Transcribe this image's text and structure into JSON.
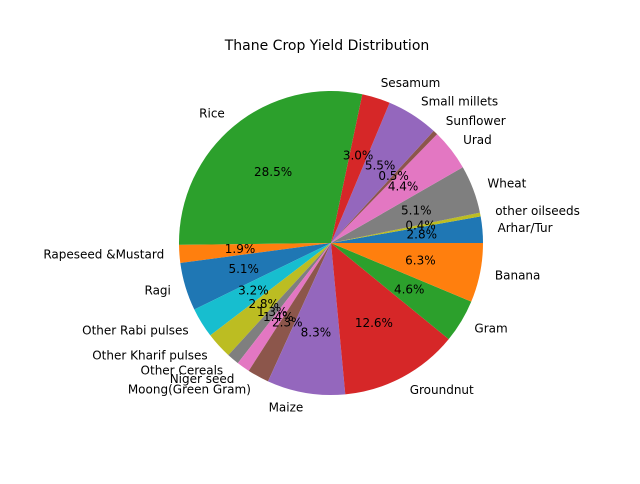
{
  "chart_data": {
    "type": "pie",
    "title": "Thane Crop Yield Distribution",
    "start_angle_deg": 0,
    "direction": "counterclockwise",
    "slices": [
      {
        "label": "Arhar/Tur",
        "value": 2.8,
        "pct": "2.8%",
        "color": "#1f77b4"
      },
      {
        "label": "other oilseeds",
        "value": 0.4,
        "pct": "0.4%",
        "color": "#bcbd22"
      },
      {
        "label": "Wheat",
        "value": 5.1,
        "pct": "5.1%",
        "color": "#7f7f7f"
      },
      {
        "label": "Urad",
        "value": 4.4,
        "pct": "4.4%",
        "color": "#e377c2"
      },
      {
        "label": "Sunflower",
        "value": 0.5,
        "pct": "0.5%",
        "color": "#8c564b"
      },
      {
        "label": "Small millets",
        "value": 5.5,
        "pct": "5.5%",
        "color": "#9467bd"
      },
      {
        "label": "Sesamum",
        "value": 3.0,
        "pct": "3.0%",
        "color": "#d62728"
      },
      {
        "label": "Rice",
        "value": 28.5,
        "pct": "28.5%",
        "color": "#2ca02c"
      },
      {
        "label": "Rapeseed &Mustard",
        "value": 1.9,
        "pct": "1.9%",
        "color": "#ff7f0e"
      },
      {
        "label": "Ragi",
        "value": 5.1,
        "pct": "5.1%",
        "color": "#1f77b4"
      },
      {
        "label": "Other Rabi pulses",
        "value": 3.2,
        "pct": "3.2%",
        "color": "#17becf"
      },
      {
        "label": "Other Kharif pulses",
        "value": 2.8,
        "pct": "2.8%",
        "color": "#bcbd22"
      },
      {
        "label": "Other Cereals",
        "value": 1.3,
        "pct": "1.3%",
        "color": "#7f7f7f"
      },
      {
        "label": "Niger seed",
        "value": 1.4,
        "pct": "1.4%",
        "color": "#e377c2"
      },
      {
        "label": "Moong(Green Gram)",
        "value": 2.3,
        "pct": "2.3%",
        "color": "#8c564b"
      },
      {
        "label": "Maize",
        "value": 8.3,
        "pct": "8.3%",
        "color": "#9467bd"
      },
      {
        "label": "Groundnut",
        "value": 12.6,
        "pct": "12.6%",
        "color": "#d62728"
      },
      {
        "label": "Gram",
        "value": 4.6,
        "pct": "4.6%",
        "color": "#2ca02c"
      },
      {
        "label": "Banana",
        "value": 6.3,
        "pct": "6.3%",
        "color": "#ff7f0e"
      }
    ]
  }
}
